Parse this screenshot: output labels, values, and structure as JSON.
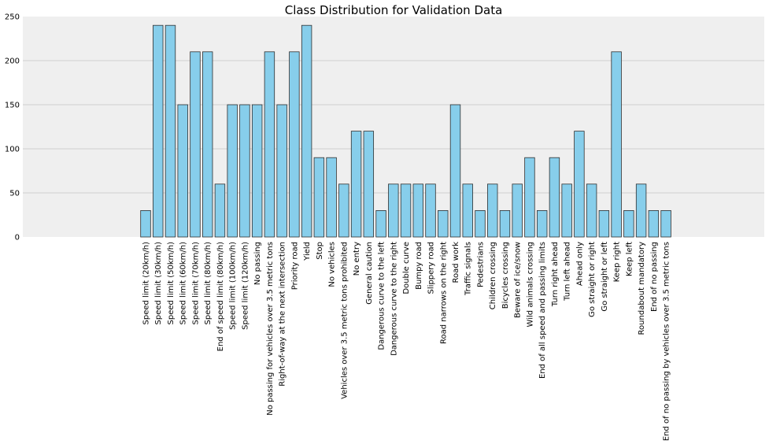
{
  "chart_data": {
    "type": "bar",
    "title": "Class Distribution for Validation Data",
    "xlabel": "",
    "ylabel": "",
    "ylim": [
      0,
      250
    ],
    "yticks": [
      0,
      50,
      100,
      150,
      200,
      250
    ],
    "grid": "horizontal",
    "background": "#efefef",
    "bar_color": "#87ceeb",
    "bar_edge_color": "#2f2f2f",
    "grid_color": "#cfcfcf",
    "categories": [
      "Speed limit (20km/h)",
      "Speed limit (30km/h)",
      "Speed limit (50km/h)",
      "Speed limit (60km/h)",
      "Speed limit (70km/h)",
      "Speed limit (80km/h)",
      "End of speed limit (80km/h)",
      "Speed limit (100km/h)",
      "Speed limit (120km/h)",
      "No passing",
      "No passing for vehicles over 3.5 metric tons",
      "Right-of-way at the next intersection",
      "Priority road",
      "Yield",
      "Stop",
      "No vehicles",
      "Vehicles over 3.5 metric tons prohibited",
      "No entry",
      "General caution",
      "Dangerous curve to the left",
      "Dangerous curve to the right",
      "Double curve",
      "Bumpy road",
      "Slippery road",
      "Road narrows on the right",
      "Road work",
      "Traffic signals",
      "Pedestrians",
      "Children crossing",
      "Bicycles crossing",
      "Beware of ice/snow",
      "Wild animals crossing",
      "End of all speed and passing limits",
      "Turn right ahead",
      "Turn left ahead",
      "Ahead only",
      "Go straight or right",
      "Go straight or left",
      "Keep right",
      "Keep left",
      "Roundabout mandatory",
      "End of no passing",
      "End of no passing by vehicles over 3.5 metric tons"
    ],
    "values": [
      30,
      240,
      240,
      150,
      210,
      210,
      60,
      150,
      150,
      150,
      210,
      150,
      210,
      240,
      90,
      90,
      60,
      120,
      120,
      30,
      60,
      60,
      60,
      60,
      30,
      150,
      60,
      30,
      60,
      30,
      60,
      90,
      30,
      90,
      60,
      120,
      60,
      30,
      210,
      30,
      60,
      30,
      30
    ]
  }
}
